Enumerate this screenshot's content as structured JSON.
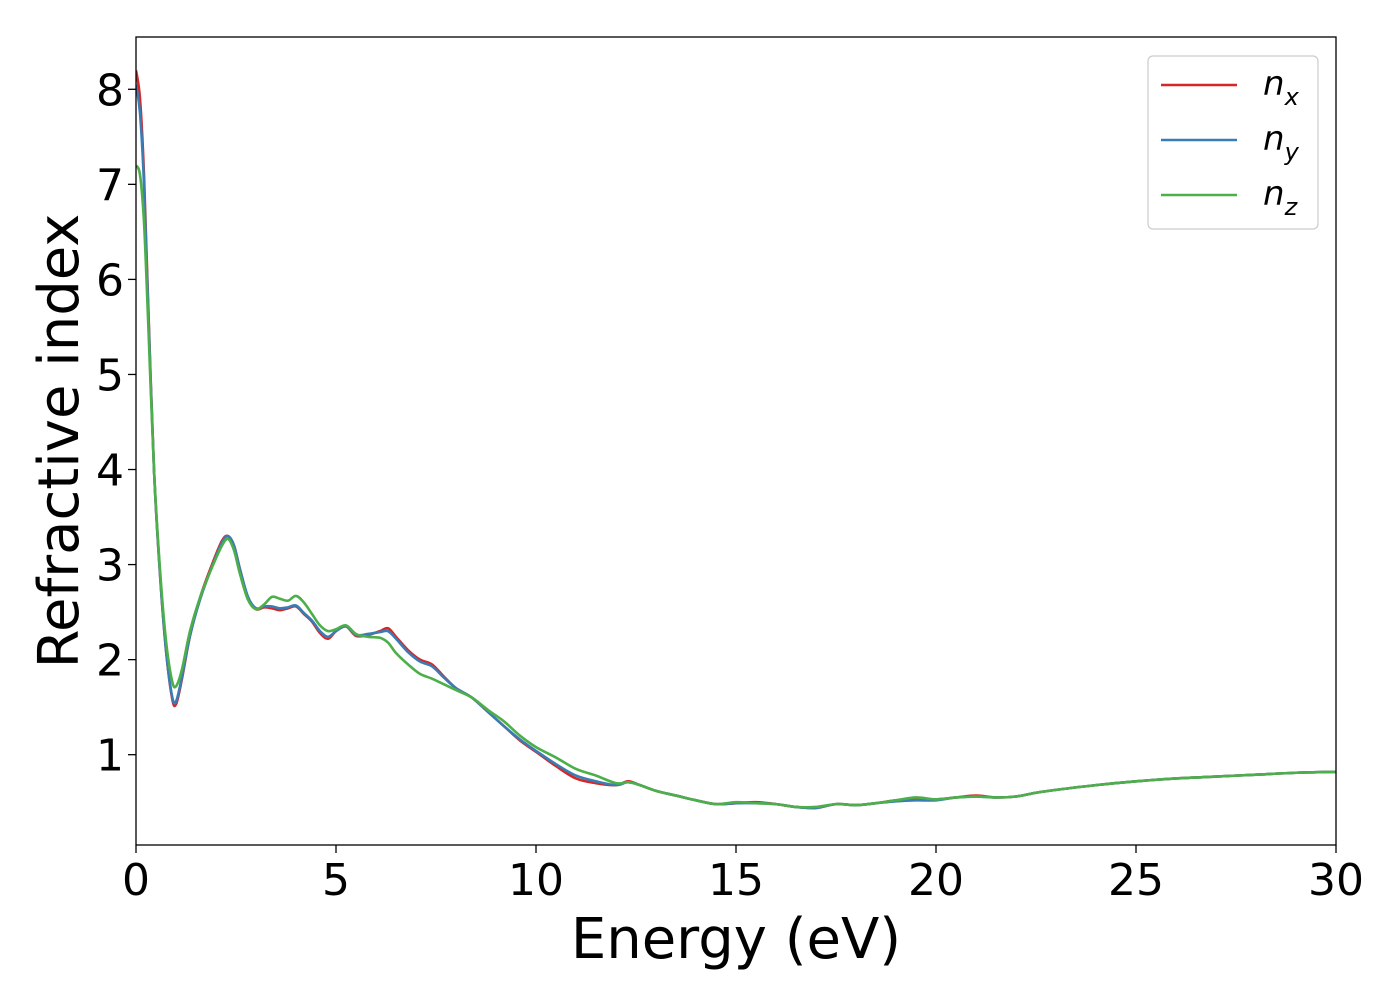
{
  "chart_data": {
    "type": "line",
    "title": "",
    "xlabel": "Energy (eV)",
    "ylabel": "Refractive index",
    "xlim": [
      0,
      30
    ],
    "ylim": [
      0.05,
      8.55
    ],
    "xticks": [
      0,
      5,
      10,
      15,
      20,
      25,
      30
    ],
    "yticks": [
      1,
      2,
      3,
      4,
      5,
      6,
      7,
      8
    ],
    "grid": false,
    "legend_position": "top-right",
    "series": [
      {
        "name": "n",
        "subscript": "x",
        "color": "#d62728",
        "x": [
          0,
          0.1,
          0.2,
          0.3,
          0.45,
          0.6,
          0.75,
          0.9,
          1.0,
          1.15,
          1.35,
          1.6,
          1.9,
          2.15,
          2.3,
          2.45,
          2.6,
          2.8,
          3.0,
          3.2,
          3.4,
          3.6,
          3.8,
          4.0,
          4.2,
          4.4,
          4.6,
          4.8,
          5.0,
          5.25,
          5.5,
          5.8,
          6.1,
          6.3,
          6.5,
          6.8,
          7.1,
          7.4,
          7.7,
          8.0,
          8.4,
          8.8,
          9.2,
          9.6,
          10.0,
          10.5,
          11.0,
          11.5,
          12.0,
          12.3,
          12.6,
          13.0,
          13.5,
          14.0,
          14.5,
          15.0,
          15.5,
          16.0,
          16.5,
          17.0,
          17.5,
          18.0,
          18.5,
          19.0,
          19.5,
          20.0,
          20.5,
          21.0,
          21.5,
          22.0,
          22.5,
          23.0,
          24.0,
          25.0,
          26.0,
          27.0,
          28.0,
          29.0,
          30.0
        ],
        "y": [
          8.2,
          7.9,
          7.1,
          5.8,
          4.0,
          2.9,
          2.1,
          1.6,
          1.53,
          1.8,
          2.25,
          2.65,
          3.0,
          3.25,
          3.3,
          3.2,
          2.95,
          2.65,
          2.53,
          2.55,
          2.54,
          2.52,
          2.54,
          2.56,
          2.48,
          2.4,
          2.28,
          2.22,
          2.3,
          2.35,
          2.25,
          2.26,
          2.3,
          2.33,
          2.24,
          2.1,
          2.0,
          1.95,
          1.82,
          1.7,
          1.6,
          1.45,
          1.3,
          1.15,
          1.03,
          0.88,
          0.75,
          0.7,
          0.68,
          0.72,
          0.68,
          0.62,
          0.57,
          0.52,
          0.48,
          0.49,
          0.5,
          0.48,
          0.45,
          0.44,
          0.48,
          0.47,
          0.49,
          0.52,
          0.53,
          0.53,
          0.55,
          0.57,
          0.55,
          0.56,
          0.6,
          0.63,
          0.68,
          0.72,
          0.75,
          0.77,
          0.79,
          0.81,
          0.82
        ]
      },
      {
        "name": "n",
        "subscript": "y",
        "color": "#3a7db5",
        "x": [
          0,
          0.1,
          0.2,
          0.3,
          0.45,
          0.6,
          0.75,
          0.9,
          1.0,
          1.15,
          1.35,
          1.6,
          1.9,
          2.15,
          2.3,
          2.45,
          2.6,
          2.8,
          3.0,
          3.2,
          3.4,
          3.6,
          3.8,
          4.0,
          4.2,
          4.4,
          4.6,
          4.8,
          5.0,
          5.25,
          5.5,
          5.8,
          6.1,
          6.3,
          6.5,
          6.8,
          7.1,
          7.4,
          7.7,
          8.0,
          8.4,
          8.8,
          9.2,
          9.6,
          10.0,
          10.5,
          11.0,
          11.5,
          12.0,
          12.3,
          12.6,
          13.0,
          13.5,
          14.0,
          14.5,
          15.0,
          15.5,
          16.0,
          16.5,
          17.0,
          17.5,
          18.0,
          18.5,
          19.0,
          19.5,
          20.0,
          20.5,
          21.0,
          21.5,
          22.0,
          22.5,
          23.0,
          24.0,
          25.0,
          26.0,
          27.0,
          28.0,
          29.0,
          30.0
        ],
        "y": [
          8.05,
          7.75,
          7.0,
          5.75,
          4.0,
          2.9,
          2.1,
          1.62,
          1.56,
          1.82,
          2.25,
          2.63,
          2.98,
          3.23,
          3.3,
          3.2,
          2.95,
          2.66,
          2.54,
          2.56,
          2.56,
          2.54,
          2.55,
          2.57,
          2.49,
          2.41,
          2.3,
          2.24,
          2.3,
          2.35,
          2.26,
          2.27,
          2.29,
          2.3,
          2.22,
          2.08,
          1.98,
          1.93,
          1.81,
          1.7,
          1.6,
          1.45,
          1.3,
          1.16,
          1.04,
          0.9,
          0.78,
          0.72,
          0.68,
          0.71,
          0.68,
          0.62,
          0.57,
          0.52,
          0.48,
          0.49,
          0.49,
          0.48,
          0.45,
          0.44,
          0.48,
          0.47,
          0.49,
          0.51,
          0.52,
          0.52,
          0.55,
          0.56,
          0.55,
          0.56,
          0.6,
          0.63,
          0.68,
          0.72,
          0.75,
          0.77,
          0.79,
          0.81,
          0.82
        ]
      },
      {
        "name": "n",
        "subscript": "z",
        "color": "#4daf4a",
        "x": [
          0,
          0.1,
          0.2,
          0.3,
          0.45,
          0.6,
          0.75,
          0.9,
          1.0,
          1.15,
          1.35,
          1.6,
          1.9,
          2.15,
          2.3,
          2.45,
          2.6,
          2.8,
          3.0,
          3.2,
          3.4,
          3.6,
          3.8,
          4.0,
          4.2,
          4.4,
          4.6,
          4.8,
          5.0,
          5.25,
          5.5,
          5.8,
          6.1,
          6.3,
          6.5,
          6.8,
          7.1,
          7.4,
          7.7,
          8.0,
          8.4,
          8.8,
          9.2,
          9.6,
          10.0,
          10.5,
          11.0,
          11.5,
          12.0,
          12.3,
          12.6,
          13.0,
          13.5,
          14.0,
          14.5,
          15.0,
          15.5,
          16.0,
          16.5,
          17.0,
          17.5,
          18.0,
          18.5,
          19.0,
          19.5,
          20.0,
          20.5,
          21.0,
          21.5,
          22.0,
          22.5,
          23.0,
          24.0,
          25.0,
          26.0,
          27.0,
          28.0,
          29.0,
          30.0
        ],
        "y": [
          7.2,
          7.1,
          6.6,
          5.6,
          4.0,
          2.95,
          2.2,
          1.78,
          1.72,
          1.9,
          2.3,
          2.65,
          2.97,
          3.2,
          3.27,
          3.15,
          2.9,
          2.63,
          2.53,
          2.58,
          2.66,
          2.64,
          2.62,
          2.67,
          2.6,
          2.48,
          2.36,
          2.3,
          2.32,
          2.36,
          2.27,
          2.24,
          2.23,
          2.18,
          2.07,
          1.95,
          1.85,
          1.8,
          1.74,
          1.68,
          1.6,
          1.47,
          1.35,
          1.2,
          1.08,
          0.97,
          0.85,
          0.78,
          0.7,
          0.71,
          0.68,
          0.62,
          0.57,
          0.52,
          0.48,
          0.5,
          0.49,
          0.48,
          0.45,
          0.45,
          0.48,
          0.47,
          0.49,
          0.52,
          0.55,
          0.53,
          0.55,
          0.56,
          0.55,
          0.56,
          0.6,
          0.63,
          0.68,
          0.72,
          0.75,
          0.77,
          0.79,
          0.81,
          0.82
        ]
      }
    ]
  }
}
